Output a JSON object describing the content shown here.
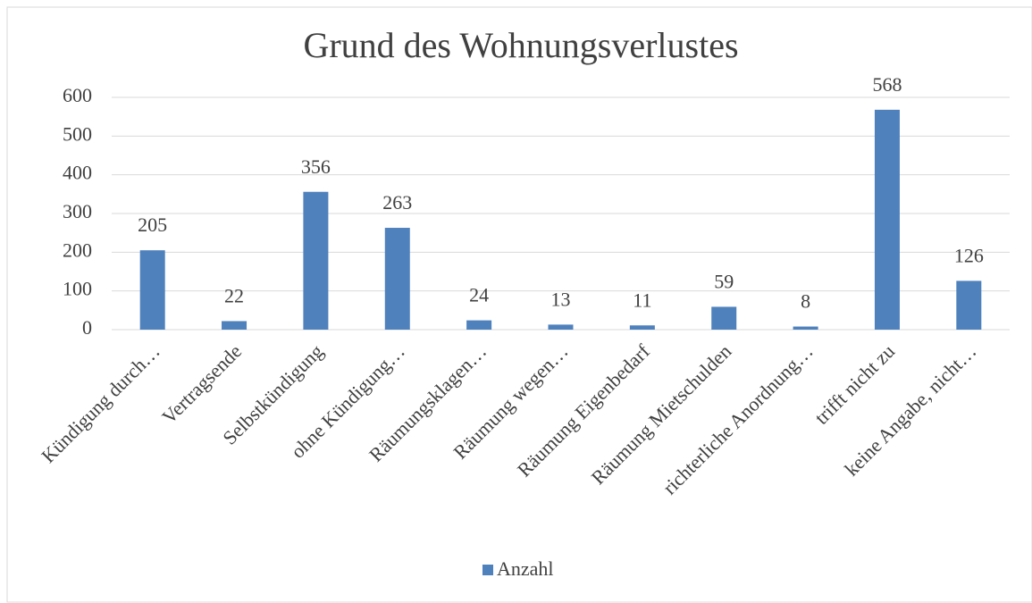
{
  "chart_data": {
    "type": "bar",
    "title": "Grund des Wohnungsverlustes",
    "categories": [
      "Kündigung durch…",
      "Vertragsende",
      "Selbstkündigung",
      "ohne Kündigung…",
      "Räumungsklagen…",
      "Räumung wegen…",
      "Räumung Eigenbedarf",
      "Räumung Mietschulden",
      "richterliche Anordnung…",
      "trifft nicht zu",
      "keine Angabe, nicht…"
    ],
    "series": [
      {
        "name": "Anzahl",
        "color": "#4f81bd",
        "values": [
          205,
          22,
          356,
          263,
          24,
          13,
          11,
          59,
          8,
          568,
          126
        ]
      }
    ],
    "ylim": [
      0,
      600
    ],
    "yticks": [
      0,
      100,
      200,
      300,
      400,
      500,
      600
    ],
    "grid": true,
    "legend": "bottom"
  }
}
